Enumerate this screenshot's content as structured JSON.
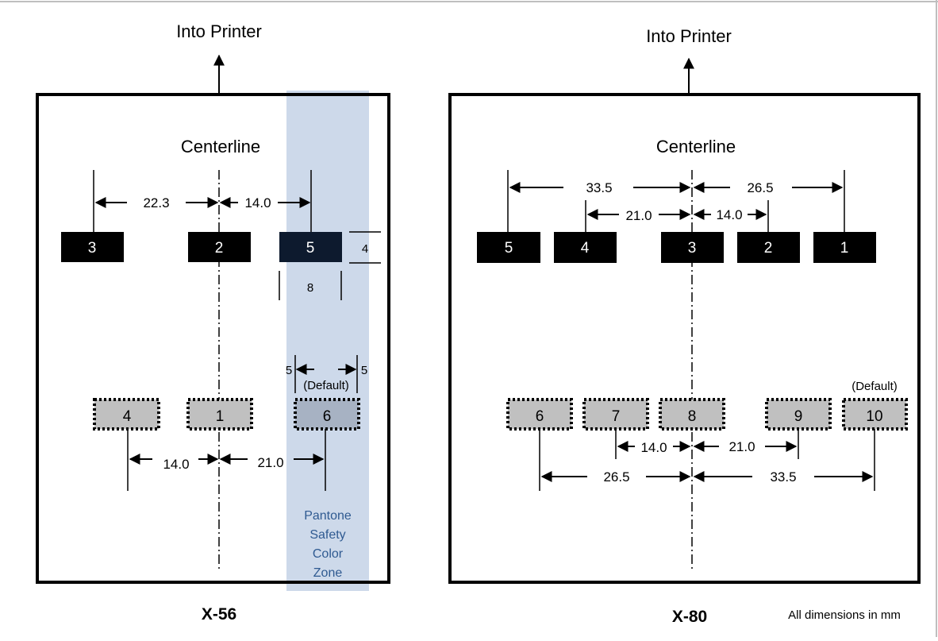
{
  "diagram": {
    "unit_note": "All dimensions in mm",
    "left": {
      "model": "X-56",
      "direction_label": "Into Printer",
      "centerline_label": "Centerline",
      "top_blocks": [
        "3",
        "2",
        "5"
      ],
      "bottom_blocks": [
        "4",
        "1",
        "6"
      ],
      "top_dims": [
        "22.3",
        "14.0"
      ],
      "block_height_dim": "4",
      "block_width_dim": "8",
      "margin_left_dim": "5",
      "margin_right_dim": "5",
      "default_label": "(Default)",
      "bottom_dims": [
        "14.0",
        "21.0"
      ],
      "zone_lines": [
        "Pantone",
        "Safety",
        "Color",
        "Zone"
      ],
      "zone_color": "#cdd9ea"
    },
    "right": {
      "model": "X-80",
      "direction_label": "Into Printer",
      "centerline_label": "Centerline",
      "top_blocks": [
        "5",
        "4",
        "3",
        "2",
        "1"
      ],
      "bottom_blocks": [
        "6",
        "7",
        "8",
        "9",
        "10"
      ],
      "top_outer_dims": [
        "33.5",
        "26.5"
      ],
      "top_inner_dims": [
        "21.0",
        "14.0"
      ],
      "default_label": "(Default)",
      "bottom_inner_dims": [
        "14.0",
        "21.0"
      ],
      "bottom_outer_dims": [
        "26.5",
        "33.5"
      ]
    },
    "colors": {
      "solid_block": "#000000",
      "dotted_block": "#c0c0c0",
      "zone_block": "#a7b2c3",
      "frame": "#000000"
    }
  }
}
